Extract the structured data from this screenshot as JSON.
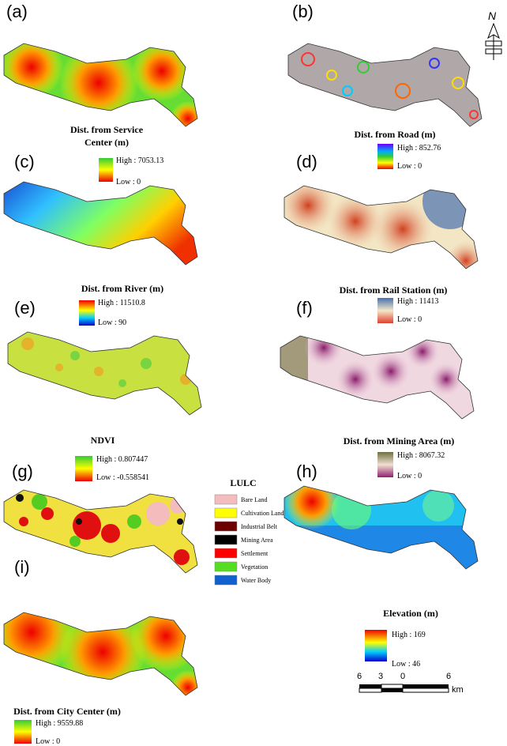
{
  "panels": [
    {
      "label": "(a)",
      "title": [
        "Dist. from Service",
        "Center (m)"
      ],
      "legend_high": "High : 7053.13",
      "legend_low": "Low : 0"
    },
    {
      "label": "(b)",
      "title": [
        "Dist. from Road (m)"
      ],
      "legend_high": "High : 852.76",
      "legend_low": "Low : 0"
    },
    {
      "label": "(c)",
      "title": [
        "Dist. from River (m)"
      ],
      "legend_high": "High : 11510.8",
      "legend_low": "Low : 90"
    },
    {
      "label": "(d)",
      "title": [
        "Dist. from Rail Station (m)"
      ],
      "legend_high": "High : 11413",
      "legend_low": "Low : 0"
    },
    {
      "label": "(e)",
      "title": [
        "NDVI"
      ],
      "legend_high": "High : 0.807447",
      "legend_low": "Low : -0.558541"
    },
    {
      "label": "(f)",
      "title": [
        "Dist. from Mining Area (m)"
      ],
      "legend_high": "High : 8067.32",
      "legend_low": "Low : 0"
    },
    {
      "label": "(g)"
    },
    {
      "label": "(h)",
      "title": [
        "Elevation (m)"
      ],
      "legend_high": "High : 169",
      "legend_low": "Low : 46"
    },
    {
      "label": "(i)",
      "title": [
        "Dist. from City Center (m)"
      ],
      "legend_high": "High : 9559.88",
      "legend_low": "Low : 0"
    }
  ],
  "lulc": {
    "title": "LULC",
    "classes": [
      {
        "name": "Bare Land",
        "color": "#f4bcbc"
      },
      {
        "name": "Cultivation Land",
        "color": "#ffff00"
      },
      {
        "name": "Industrial Belt",
        "color": "#6b0000"
      },
      {
        "name": "Mining Area",
        "color": "#000000"
      },
      {
        "name": "Settlement",
        "color": "#ff0000"
      },
      {
        "name": "Vegetation",
        "color": "#55dd22"
      },
      {
        "name": "Water Body",
        "color": "#1060d0"
      }
    ]
  },
  "north_arrow": "N",
  "scale_bar": {
    "labels": [
      "6",
      "3",
      "0",
      "6"
    ],
    "unit": "km"
  }
}
